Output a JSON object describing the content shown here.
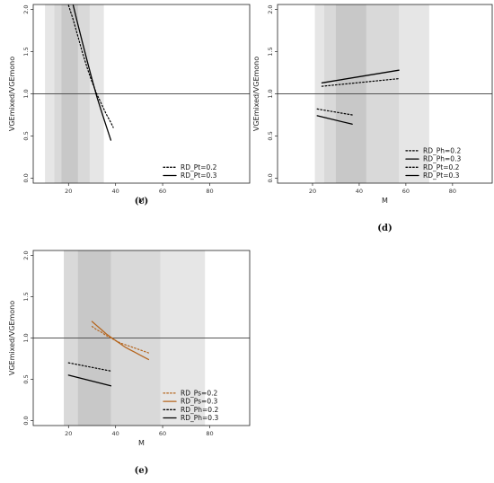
{
  "chart_data": [
    {
      "id": "c",
      "type": "line",
      "panel_label": "(c)",
      "xlabel": "M",
      "ylabel": "VGEmixed/VGEmono",
      "xlim": [
        5,
        97
      ],
      "ylim": [
        -0.06,
        2.06
      ],
      "x_ticks": [
        20,
        40,
        60,
        80
      ],
      "y_ticks": [
        0.0,
        0.5,
        1.0,
        1.5,
        2.0
      ],
      "y_tick_labels": [
        "0.0",
        "0.5",
        "1.0",
        "1.5",
        "2.0"
      ],
      "reference_line": 1.0,
      "grid": false,
      "bands": [
        {
          "x0": 10,
          "x1": 35,
          "color": "#e6e6e6"
        },
        {
          "x0": 14,
          "x1": 29,
          "color": "#d9d9d9"
        },
        {
          "x0": 17,
          "x1": 24,
          "color": "#c8c8c8"
        }
      ],
      "legend_position": "bottom-right",
      "series": [
        {
          "name": "RD_Pt=0.2",
          "color": "#000000",
          "dash": "dotted",
          "x": [
            20,
            22,
            24,
            26,
            28,
            30,
            32,
            34,
            36,
            38,
            39
          ],
          "y": [
            2.05,
            1.88,
            1.68,
            1.48,
            1.3,
            1.14,
            1.0,
            0.88,
            0.76,
            0.66,
            0.6
          ]
        },
        {
          "name": "RD_Pt=0.3",
          "color": "#000000",
          "dash": "solid",
          "x": [
            22,
            24,
            26,
            28,
            30,
            32,
            34,
            36,
            38
          ],
          "y": [
            2.05,
            1.82,
            1.6,
            1.38,
            1.17,
            0.97,
            0.79,
            0.62,
            0.45
          ]
        }
      ]
    },
    {
      "id": "d",
      "type": "line",
      "panel_label": "(d)",
      "xlabel": "M",
      "ylabel": "VGEmixed/VGEmono",
      "xlim": [
        5,
        97
      ],
      "ylim": [
        -0.06,
        2.06
      ],
      "x_ticks": [
        20,
        40,
        60,
        80
      ],
      "y_ticks": [
        0.0,
        0.5,
        1.0,
        1.5,
        2.0
      ],
      "y_tick_labels": [
        "0.0",
        "0.5",
        "1.0",
        "1.5",
        "2.0"
      ],
      "reference_line": 1.0,
      "grid": false,
      "bands": [
        {
          "x0": 21,
          "x1": 70,
          "color": "#e6e6e6"
        },
        {
          "x0": 25,
          "x1": 57,
          "color": "#d9d9d9"
        },
        {
          "x0": 30,
          "x1": 43,
          "color": "#c8c8c8"
        }
      ],
      "legend_position": "bottom-right",
      "series": [
        {
          "name": "RD_Ph=0.2",
          "color": "#000000",
          "dash": "dotted",
          "x": [
            24,
            57
          ],
          "y": [
            1.09,
            1.18
          ]
        },
        {
          "name": "RD_Ph=0.3",
          "color": "#000000",
          "dash": "solid",
          "x": [
            24,
            57
          ],
          "y": [
            1.13,
            1.28
          ]
        },
        {
          "name": "RD_Pt=0.2",
          "color": "#000000",
          "dash": "dotted",
          "x": [
            22,
            37
          ],
          "y": [
            0.82,
            0.75
          ]
        },
        {
          "name": "RD_Pt=0.3",
          "color": "#000000",
          "dash": "solid",
          "x": [
            22,
            37
          ],
          "y": [
            0.74,
            0.64
          ]
        }
      ]
    },
    {
      "id": "e",
      "type": "line",
      "panel_label": "(e)",
      "xlabel": "M",
      "ylabel": "VGEmixed/VGEmono",
      "xlim": [
        5,
        97
      ],
      "ylim": [
        -0.06,
        2.06
      ],
      "x_ticks": [
        20,
        40,
        60,
        80
      ],
      "y_ticks": [
        0.0,
        0.5,
        1.0,
        1.5,
        2.0
      ],
      "y_tick_labels": [
        "0.0",
        "0.5",
        "1.0",
        "1.5",
        "2.0"
      ],
      "reference_line": 1.0,
      "grid": false,
      "bands": [
        {
          "x0": 18,
          "x1": 78,
          "color": "#e6e6e6"
        },
        {
          "x0": 18,
          "x1": 59,
          "color": "#d9d9d9"
        },
        {
          "x0": 24,
          "x1": 38,
          "color": "#c8c8c8"
        }
      ],
      "legend_position": "bottom-right",
      "series": [
        {
          "name": "RD_Ps=0.2",
          "color": "#b5651d",
          "dash": "dotted",
          "x": [
            30,
            32,
            34,
            36,
            38,
            40,
            42,
            44,
            46,
            48,
            50,
            52,
            54
          ],
          "y": [
            1.14,
            1.1,
            1.07,
            1.03,
            1.0,
            0.97,
            0.94,
            0.92,
            0.9,
            0.88,
            0.86,
            0.84,
            0.82
          ]
        },
        {
          "name": "RD_Ps=0.3",
          "color": "#b5651d",
          "dash": "solid",
          "x": [
            30,
            32,
            34,
            36,
            38,
            40,
            42,
            44,
            46,
            48,
            50,
            52,
            54
          ],
          "y": [
            1.2,
            1.15,
            1.1,
            1.05,
            1.01,
            0.97,
            0.93,
            0.89,
            0.86,
            0.83,
            0.8,
            0.77,
            0.74
          ]
        },
        {
          "name": "RD_Ph=0.2",
          "color": "#000000",
          "dash": "dotted",
          "x": [
            20,
            38
          ],
          "y": [
            0.7,
            0.6
          ]
        },
        {
          "name": "RD_Ph=0.3",
          "color": "#000000",
          "dash": "solid",
          "x": [
            20,
            38
          ],
          "y": [
            0.55,
            0.42
          ]
        }
      ]
    }
  ]
}
